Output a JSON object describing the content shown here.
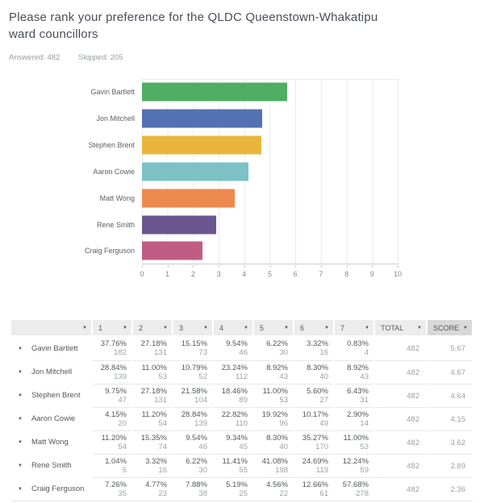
{
  "question": {
    "title": "Please rank your preference for the QLDC Queenstown-Whakatipu ward councillors",
    "answered": "Answered: 482",
    "skipped": "Skipped: 205"
  },
  "icons": {
    "sort_caret": "▼",
    "row_caret": "▼"
  },
  "chart_data": {
    "type": "bar",
    "orientation": "horizontal",
    "title": "",
    "categories": [
      "Gavin Bartlett",
      "Jon Mitchell",
      "Stephen Brent",
      "Aaron Cowie",
      "Matt Wong",
      "Rene Smith",
      "Craig Ferguson"
    ],
    "values": [
      5.67,
      4.67,
      4.64,
      4.15,
      3.62,
      2.89,
      2.36
    ],
    "bar_colors": [
      "#4fae63",
      "#5471b2",
      "#e9b63b",
      "#7dc0c6",
      "#ee8a4f",
      "#6c5690",
      "#c15c84"
    ],
    "xlim": [
      0,
      10
    ],
    "xticks": [
      0,
      1,
      2,
      3,
      4,
      5,
      6,
      7,
      8,
      9,
      10
    ],
    "grid": "vertical",
    "legend": "none"
  },
  "table": {
    "columns": [
      "",
      "1",
      "2",
      "3",
      "4",
      "5",
      "6",
      "7",
      "TOTAL",
      "SCORE"
    ],
    "rows": [
      {
        "name": "Gavin Bartlett",
        "cells": [
          {
            "pct": "37.76%",
            "count": "182"
          },
          {
            "pct": "27.18%",
            "count": "131"
          },
          {
            "pct": "15.15%",
            "count": "73"
          },
          {
            "pct": "9.54%",
            "count": "46"
          },
          {
            "pct": "6.22%",
            "count": "30"
          },
          {
            "pct": "3.32%",
            "count": "16"
          },
          {
            "pct": "0.83%",
            "count": "4"
          }
        ],
        "total": "482",
        "score": "5.67"
      },
      {
        "name": "Jon Mitchell",
        "cells": [
          {
            "pct": "28.84%",
            "count": "139"
          },
          {
            "pct": "11.00%",
            "count": "53"
          },
          {
            "pct": "10.79%",
            "count": "52"
          },
          {
            "pct": "23.24%",
            "count": "112"
          },
          {
            "pct": "8.92%",
            "count": "43"
          },
          {
            "pct": "8.30%",
            "count": "40"
          },
          {
            "pct": "8.92%",
            "count": "43"
          }
        ],
        "total": "482",
        "score": "4.67"
      },
      {
        "name": "Stephen Brent",
        "cells": [
          {
            "pct": "9.75%",
            "count": "47"
          },
          {
            "pct": "27.18%",
            "count": "131"
          },
          {
            "pct": "21.58%",
            "count": "104"
          },
          {
            "pct": "18.46%",
            "count": "89"
          },
          {
            "pct": "11.00%",
            "count": "53"
          },
          {
            "pct": "5.60%",
            "count": "27"
          },
          {
            "pct": "6.43%",
            "count": "31"
          }
        ],
        "total": "482",
        "score": "4.64"
      },
      {
        "name": "Aaron Cowie",
        "cells": [
          {
            "pct": "4.15%",
            "count": "20"
          },
          {
            "pct": "11.20%",
            "count": "54"
          },
          {
            "pct": "28.84%",
            "count": "139"
          },
          {
            "pct": "22.82%",
            "count": "110"
          },
          {
            "pct": "19.92%",
            "count": "96"
          },
          {
            "pct": "10.17%",
            "count": "49"
          },
          {
            "pct": "2.90%",
            "count": "14"
          }
        ],
        "total": "482",
        "score": "4.15"
      },
      {
        "name": "Matt Wong",
        "cells": [
          {
            "pct": "11.20%",
            "count": "54"
          },
          {
            "pct": "15.35%",
            "count": "74"
          },
          {
            "pct": "9.54%",
            "count": "46"
          },
          {
            "pct": "9.34%",
            "count": "45"
          },
          {
            "pct": "8.30%",
            "count": "40"
          },
          {
            "pct": "35.27%",
            "count": "170"
          },
          {
            "pct": "11.00%",
            "count": "53"
          }
        ],
        "total": "482",
        "score": "3.62"
      },
      {
        "name": "Rene Smith",
        "cells": [
          {
            "pct": "1.04%",
            "count": "5"
          },
          {
            "pct": "3.32%",
            "count": "16"
          },
          {
            "pct": "6.22%",
            "count": "30"
          },
          {
            "pct": "11.41%",
            "count": "55"
          },
          {
            "pct": "41.08%",
            "count": "198"
          },
          {
            "pct": "24.69%",
            "count": "119"
          },
          {
            "pct": "12.24%",
            "count": "59"
          }
        ],
        "total": "482",
        "score": "2.89"
      },
      {
        "name": "Craig Ferguson",
        "cells": [
          {
            "pct": "7.26%",
            "count": "35"
          },
          {
            "pct": "4.77%",
            "count": "23"
          },
          {
            "pct": "7.88%",
            "count": "38"
          },
          {
            "pct": "5.19%",
            "count": "25"
          },
          {
            "pct": "4.56%",
            "count": "22"
          },
          {
            "pct": "12.66%",
            "count": "61"
          },
          {
            "pct": "57.68%",
            "count": "278"
          }
        ],
        "total": "482",
        "score": "2.36"
      }
    ]
  }
}
